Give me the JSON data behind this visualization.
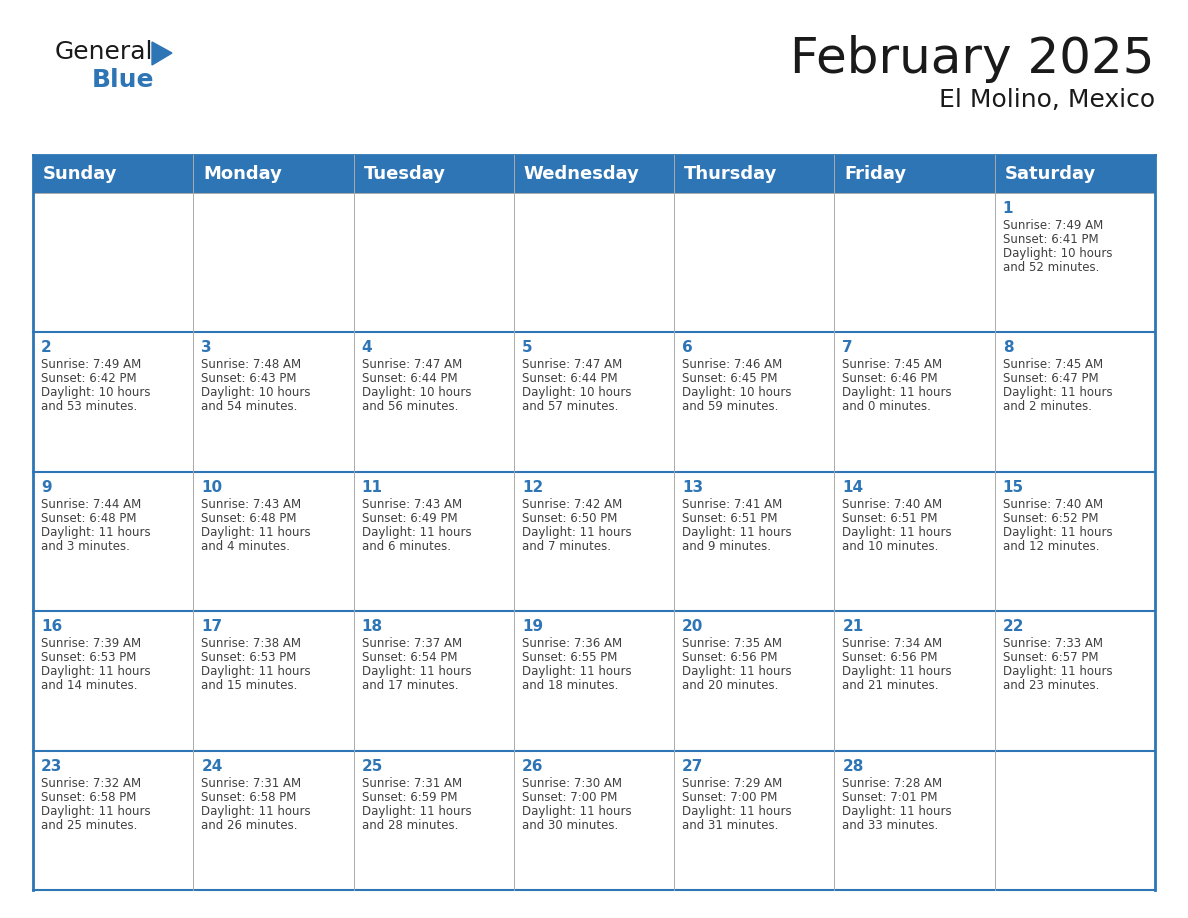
{
  "title": "February 2025",
  "subtitle": "El Molino, Mexico",
  "header_bg": "#2E75B6",
  "header_text_color": "#FFFFFF",
  "border_color": "#2E75B6",
  "day_number_color": "#2E75B6",
  "info_text_color": "#404040",
  "grid_line_color": "#AAAAAA",
  "days_of_week": [
    "Sunday",
    "Monday",
    "Tuesday",
    "Wednesday",
    "Thursday",
    "Friday",
    "Saturday"
  ],
  "calendar": [
    [
      null,
      null,
      null,
      null,
      null,
      null,
      1
    ],
    [
      2,
      3,
      4,
      5,
      6,
      7,
      8
    ],
    [
      9,
      10,
      11,
      12,
      13,
      14,
      15
    ],
    [
      16,
      17,
      18,
      19,
      20,
      21,
      22
    ],
    [
      23,
      24,
      25,
      26,
      27,
      28,
      null
    ]
  ],
  "cell_data": {
    "1": {
      "sunrise": "7:49 AM",
      "sunset": "6:41 PM",
      "daylight": "10 hours and 52 minutes."
    },
    "2": {
      "sunrise": "7:49 AM",
      "sunset": "6:42 PM",
      "daylight": "10 hours and 53 minutes."
    },
    "3": {
      "sunrise": "7:48 AM",
      "sunset": "6:43 PM",
      "daylight": "10 hours and 54 minutes."
    },
    "4": {
      "sunrise": "7:47 AM",
      "sunset": "6:44 PM",
      "daylight": "10 hours and 56 minutes."
    },
    "5": {
      "sunrise": "7:47 AM",
      "sunset": "6:44 PM",
      "daylight": "10 hours and 57 minutes."
    },
    "6": {
      "sunrise": "7:46 AM",
      "sunset": "6:45 PM",
      "daylight": "10 hours and 59 minutes."
    },
    "7": {
      "sunrise": "7:45 AM",
      "sunset": "6:46 PM",
      "daylight": "11 hours and 0 minutes."
    },
    "8": {
      "sunrise": "7:45 AM",
      "sunset": "6:47 PM",
      "daylight": "11 hours and 2 minutes."
    },
    "9": {
      "sunrise": "7:44 AM",
      "sunset": "6:48 PM",
      "daylight": "11 hours and 3 minutes."
    },
    "10": {
      "sunrise": "7:43 AM",
      "sunset": "6:48 PM",
      "daylight": "11 hours and 4 minutes."
    },
    "11": {
      "sunrise": "7:43 AM",
      "sunset": "6:49 PM",
      "daylight": "11 hours and 6 minutes."
    },
    "12": {
      "sunrise": "7:42 AM",
      "sunset": "6:50 PM",
      "daylight": "11 hours and 7 minutes."
    },
    "13": {
      "sunrise": "7:41 AM",
      "sunset": "6:51 PM",
      "daylight": "11 hours and 9 minutes."
    },
    "14": {
      "sunrise": "7:40 AM",
      "sunset": "6:51 PM",
      "daylight": "11 hours and 10 minutes."
    },
    "15": {
      "sunrise": "7:40 AM",
      "sunset": "6:52 PM",
      "daylight": "11 hours and 12 minutes."
    },
    "16": {
      "sunrise": "7:39 AM",
      "sunset": "6:53 PM",
      "daylight": "11 hours and 14 minutes."
    },
    "17": {
      "sunrise": "7:38 AM",
      "sunset": "6:53 PM",
      "daylight": "11 hours and 15 minutes."
    },
    "18": {
      "sunrise": "7:37 AM",
      "sunset": "6:54 PM",
      "daylight": "11 hours and 17 minutes."
    },
    "19": {
      "sunrise": "7:36 AM",
      "sunset": "6:55 PM",
      "daylight": "11 hours and 18 minutes."
    },
    "20": {
      "sunrise": "7:35 AM",
      "sunset": "6:56 PM",
      "daylight": "11 hours and 20 minutes."
    },
    "21": {
      "sunrise": "7:34 AM",
      "sunset": "6:56 PM",
      "daylight": "11 hours and 21 minutes."
    },
    "22": {
      "sunrise": "7:33 AM",
      "sunset": "6:57 PM",
      "daylight": "11 hours and 23 minutes."
    },
    "23": {
      "sunrise": "7:32 AM",
      "sunset": "6:58 PM",
      "daylight": "11 hours and 25 minutes."
    },
    "24": {
      "sunrise": "7:31 AM",
      "sunset": "6:58 PM",
      "daylight": "11 hours and 26 minutes."
    },
    "25": {
      "sunrise": "7:31 AM",
      "sunset": "6:59 PM",
      "daylight": "11 hours and 28 minutes."
    },
    "26": {
      "sunrise": "7:30 AM",
      "sunset": "7:00 PM",
      "daylight": "11 hours and 30 minutes."
    },
    "27": {
      "sunrise": "7:29 AM",
      "sunset": "7:00 PM",
      "daylight": "11 hours and 31 minutes."
    },
    "28": {
      "sunrise": "7:28 AM",
      "sunset": "7:01 PM",
      "daylight": "11 hours and 33 minutes."
    }
  },
  "logo_general_color": "#1a1a1a",
  "logo_blue_color": "#2E75B6",
  "title_fontsize": 36,
  "subtitle_fontsize": 18,
  "header_fontsize": 13,
  "day_num_fontsize": 11,
  "info_fontsize": 8.5
}
